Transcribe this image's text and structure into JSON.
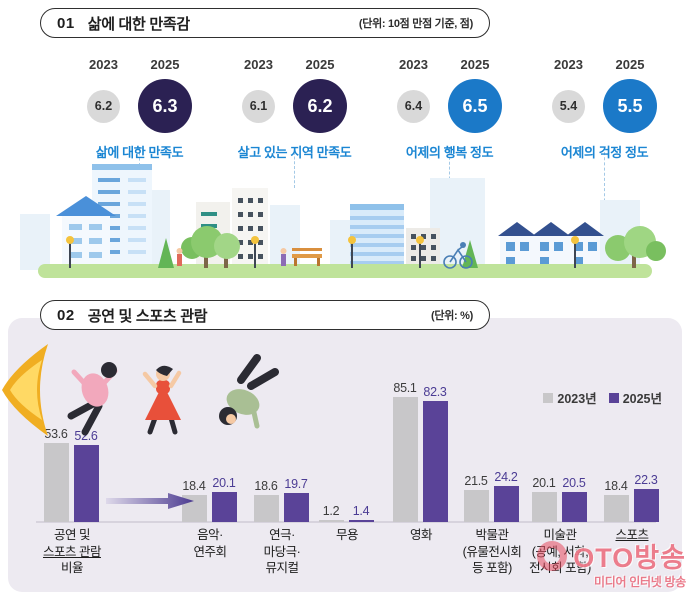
{
  "section1": {
    "number": "01",
    "title": "삶에 대한 만족감",
    "unit": "(단위: 10점 만점 기준, 점)",
    "col_years": [
      "2023",
      "2025"
    ],
    "groups": [
      {
        "label": "삶에 대한 만족도",
        "v2023": "6.2",
        "v2025": "6.3",
        "accent": "#2b2153"
      },
      {
        "label": "살고 있는 지역 만족도",
        "v2023": "6.1",
        "v2025": "6.2",
        "accent": "#2b2153"
      },
      {
        "label": "어제의 행복 정도",
        "v2023": "6.4",
        "v2025": "6.5",
        "accent": "#1b79c8"
      },
      {
        "label": "어제의 걱정 정도",
        "v2023": "5.4",
        "v2025": "5.5",
        "accent": "#1b79c8"
      }
    ]
  },
  "section2": {
    "number": "02",
    "title": "공연 및 스포츠 관람",
    "unit": "(단위: %)"
  },
  "chart_data": {
    "type": "bar",
    "title": "공연 및 스포츠 관람",
    "unit": "%",
    "ylim": [
      0,
      100
    ],
    "grid": false,
    "legend_position": "top-right",
    "legend": [
      {
        "label": "2023년",
        "color": "#c8c7c9"
      },
      {
        "label": "2025년",
        "color": "#5a4398"
      }
    ],
    "categories": [
      {
        "lines": [
          "공연 및",
          "스포츠 관람",
          "비율"
        ],
        "underline_line": 1
      },
      {
        "lines": [
          "음악·",
          "연주회"
        ]
      },
      {
        "lines": [
          "연극·",
          "마당극·",
          "뮤지컬"
        ]
      },
      {
        "lines": [
          "무용"
        ]
      },
      {
        "lines": [
          "영화"
        ]
      },
      {
        "lines": [
          "박물관",
          "(유물전시회",
          "등 포함)"
        ]
      },
      {
        "lines": [
          "미술관",
          "(공예, 서화,",
          "전시회 포함)"
        ]
      },
      {
        "lines": [
          "스포츠"
        ],
        "underline_line": 0
      }
    ],
    "series": [
      {
        "name": "2023년",
        "color": "#c8c7c9",
        "label_color": "#3c3c3c",
        "values": [
          53.6,
          18.4,
          18.6,
          1.2,
          85.1,
          21.5,
          20.1,
          18.4
        ]
      },
      {
        "name": "2025년",
        "color": "#5a4398",
        "label_color": "#4b3c94",
        "values": [
          52.6,
          20.1,
          19.7,
          1.4,
          82.3,
          24.2,
          20.5,
          22.3
        ]
      }
    ]
  },
  "watermark": {
    "title": "OTO방송",
    "subtitle": "미디어 인터넷 방송"
  }
}
